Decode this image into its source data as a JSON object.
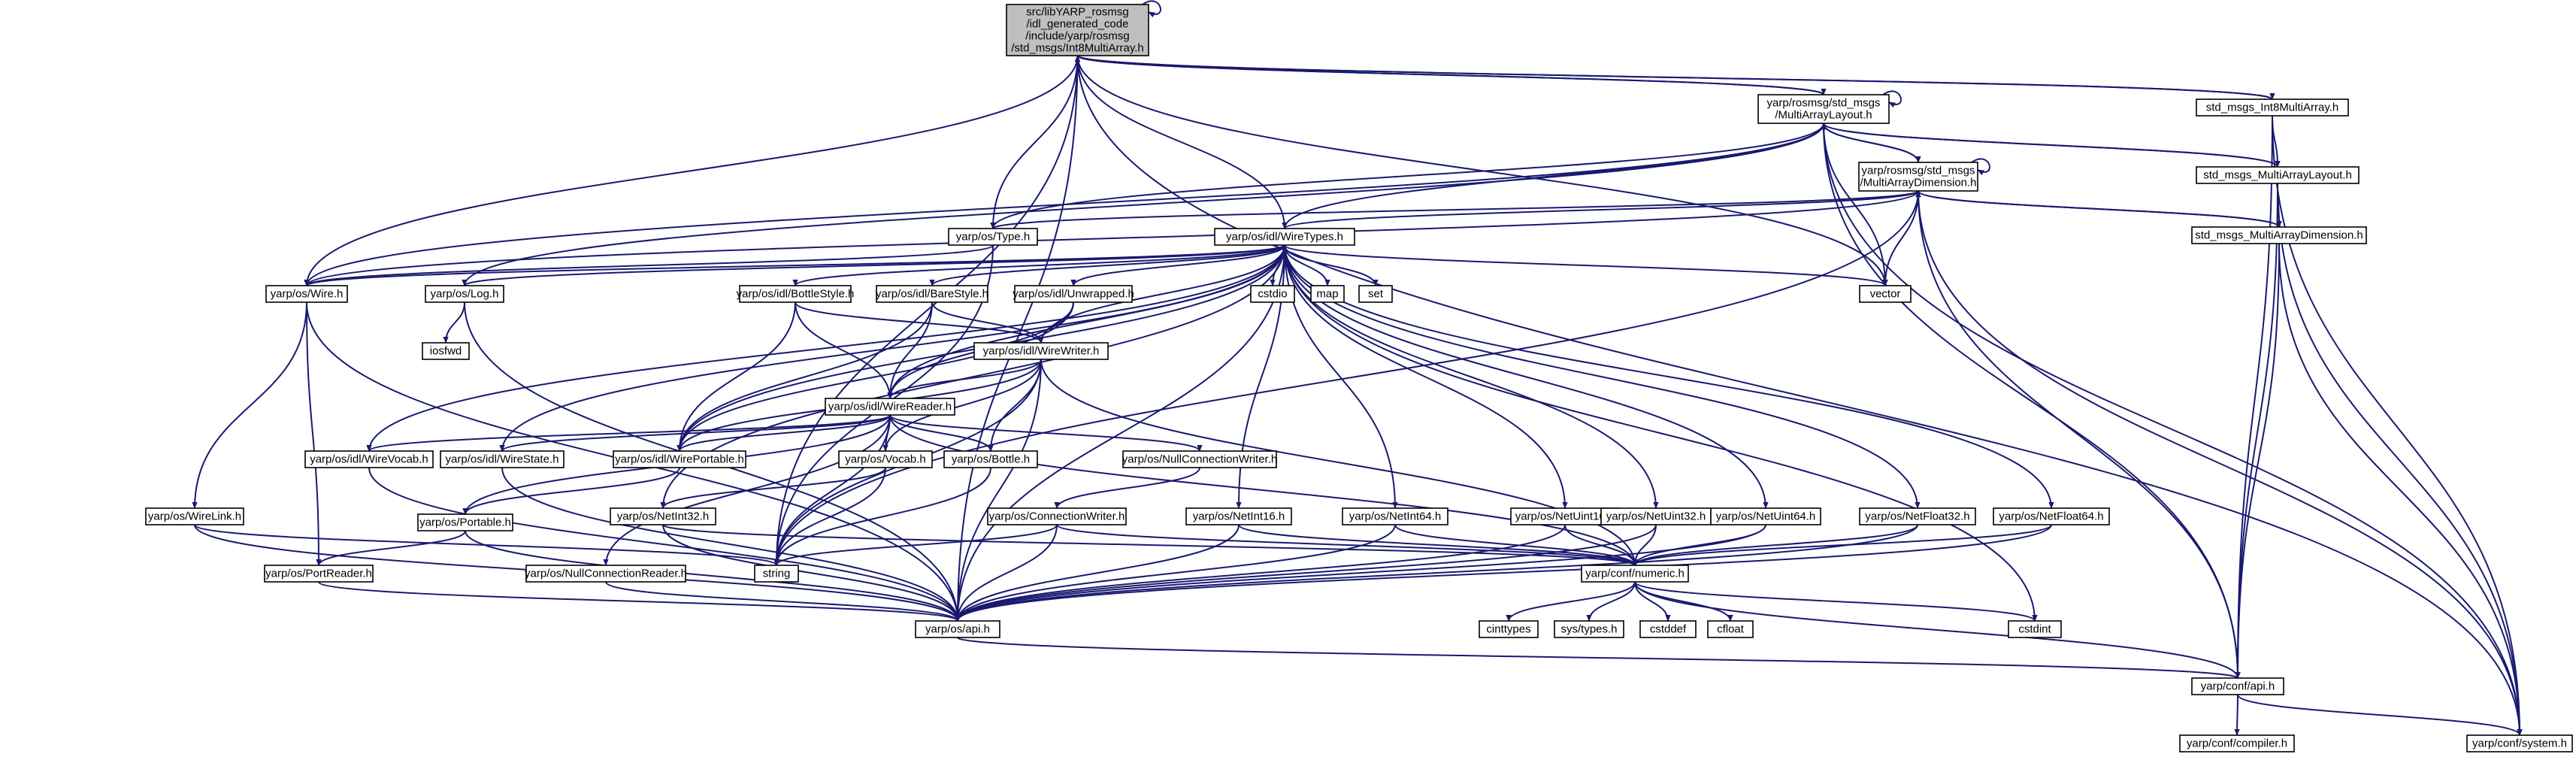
{
  "colors": {
    "edge": "#191970",
    "node_border": "#000000",
    "node_border_truncated": "#ff0000",
    "root_fill": "#bfbfbf",
    "node_fill": "#ffffff",
    "system_header_border": "#bfbfbf",
    "system_header_text": "#808080"
  },
  "nodes": [
    {
      "id": "root",
      "kind": "root",
      "lines": [
        "src/libYARP_rosmsg",
        "/idl_generated_code",
        "/include/yarp/rosmsg",
        "/std_msgs/Int8MultiArray.h"
      ]
    },
    {
      "id": "mal",
      "kind": "normal",
      "lines": [
        "yarp/rosmsg/std_msgs",
        "/MultiArrayLayout.h"
      ]
    },
    {
      "id": "mad",
      "kind": "normal",
      "lines": [
        "yarp/rosmsg/std_msgs",
        "/MultiArrayDimension.h"
      ]
    },
    {
      "id": "i8ma",
      "kind": "normal",
      "lines": [
        "std_msgs_Int8MultiArray.h"
      ]
    },
    {
      "id": "smal",
      "kind": "normal",
      "lines": [
        "std_msgs_MultiArrayLayout.h"
      ]
    },
    {
      "id": "smad",
      "kind": "normal",
      "lines": [
        "std_msgs_MultiArrayDimension.h"
      ]
    },
    {
      "id": "type",
      "kind": "normal",
      "lines": [
        "yarp/os/Type.h"
      ]
    },
    {
      "id": "wiretypes",
      "kind": "normal",
      "lines": [
        "yarp/os/idl/WireTypes.h"
      ]
    },
    {
      "id": "wire",
      "kind": "normal",
      "lines": [
        "yarp/os/Wire.h"
      ]
    },
    {
      "id": "log",
      "kind": "normal",
      "lines": [
        "yarp/os/Log.h"
      ]
    },
    {
      "id": "bottlestyle",
      "kind": "normal",
      "lines": [
        "yarp/os/idl/BottleStyle.h"
      ]
    },
    {
      "id": "barestyle",
      "kind": "normal",
      "lines": [
        "yarp/os/idl/BareStyle.h"
      ]
    },
    {
      "id": "unwrapped",
      "kind": "normal",
      "lines": [
        "yarp/os/idl/Unwrapped.h"
      ]
    },
    {
      "id": "cstdio",
      "kind": "system",
      "lines": [
        "cstdio"
      ]
    },
    {
      "id": "map",
      "kind": "system",
      "lines": [
        "map"
      ]
    },
    {
      "id": "set",
      "kind": "system",
      "lines": [
        "set"
      ]
    },
    {
      "id": "vector",
      "kind": "system",
      "lines": [
        "vector"
      ]
    },
    {
      "id": "iosfwd",
      "kind": "system",
      "lines": [
        "iosfwd"
      ]
    },
    {
      "id": "wirewriter",
      "kind": "normal",
      "lines": [
        "yarp/os/idl/WireWriter.h"
      ]
    },
    {
      "id": "wirereader",
      "kind": "normal",
      "lines": [
        "yarp/os/idl/WireReader.h"
      ]
    },
    {
      "id": "wirevocab",
      "kind": "normal",
      "lines": [
        "yarp/os/idl/WireVocab.h"
      ]
    },
    {
      "id": "wirestate",
      "kind": "normal",
      "lines": [
        "yarp/os/idl/WireState.h"
      ]
    },
    {
      "id": "wireportable",
      "kind": "normal",
      "lines": [
        "yarp/os/idl/WirePortable.h"
      ]
    },
    {
      "id": "vocab",
      "kind": "normal",
      "lines": [
        "yarp/os/Vocab.h"
      ]
    },
    {
      "id": "bottle",
      "kind": "truncated",
      "lines": [
        "yarp/os/Bottle.h"
      ]
    },
    {
      "id": "nullconnwriter",
      "kind": "normal",
      "lines": [
        "yarp/os/NullConnectionWriter.h"
      ]
    },
    {
      "id": "wirelink",
      "kind": "normal",
      "lines": [
        "yarp/os/WireLink.h"
      ]
    },
    {
      "id": "portable",
      "kind": "truncated",
      "lines": [
        "yarp/os/Portable.h"
      ]
    },
    {
      "id": "netint32",
      "kind": "normal",
      "lines": [
        "yarp/os/NetInt32.h"
      ]
    },
    {
      "id": "connwriter",
      "kind": "normal",
      "lines": [
        "yarp/os/ConnectionWriter.h"
      ]
    },
    {
      "id": "netint16",
      "kind": "normal",
      "lines": [
        "yarp/os/NetInt16.h"
      ]
    },
    {
      "id": "netint64",
      "kind": "normal",
      "lines": [
        "yarp/os/NetInt64.h"
      ]
    },
    {
      "id": "netuint16",
      "kind": "normal",
      "lines": [
        "yarp/os/NetUint16.h"
      ]
    },
    {
      "id": "netuint32",
      "kind": "normal",
      "lines": [
        "yarp/os/NetUint32.h"
      ]
    },
    {
      "id": "netuint64",
      "kind": "normal",
      "lines": [
        "yarp/os/NetUint64.h"
      ]
    },
    {
      "id": "netfloat32",
      "kind": "normal",
      "lines": [
        "yarp/os/NetFloat32.h"
      ]
    },
    {
      "id": "netfloat64",
      "kind": "normal",
      "lines": [
        "yarp/os/NetFloat64.h"
      ]
    },
    {
      "id": "portreader",
      "kind": "normal",
      "lines": [
        "yarp/os/PortReader.h"
      ]
    },
    {
      "id": "nullconnreader",
      "kind": "truncated",
      "lines": [
        "yarp/os/NullConnectionReader.h"
      ]
    },
    {
      "id": "string",
      "kind": "system",
      "lines": [
        "string"
      ]
    },
    {
      "id": "numeric",
      "kind": "normal",
      "lines": [
        "yarp/conf/numeric.h"
      ]
    },
    {
      "id": "osapi",
      "kind": "normal",
      "lines": [
        "yarp/os/api.h"
      ]
    },
    {
      "id": "cinttypes",
      "kind": "system",
      "lines": [
        "cinttypes"
      ]
    },
    {
      "id": "systypes",
      "kind": "system",
      "lines": [
        "sys/types.h"
      ]
    },
    {
      "id": "cstddef",
      "kind": "system",
      "lines": [
        "cstddef"
      ]
    },
    {
      "id": "cfloat",
      "kind": "system",
      "lines": [
        "cfloat"
      ]
    },
    {
      "id": "cstdint",
      "kind": "system",
      "lines": [
        "cstdint"
      ]
    },
    {
      "id": "confapi",
      "kind": "normal",
      "lines": [
        "yarp/conf/api.h"
      ]
    },
    {
      "id": "compiler",
      "kind": "normal",
      "lines": [
        "yarp/conf/compiler.h"
      ]
    },
    {
      "id": "system",
      "kind": "normal",
      "lines": [
        "yarp/conf/system.h"
      ]
    }
  ],
  "edges": [
    [
      "root",
      "root"
    ],
    [
      "root",
      "mal"
    ],
    [
      "root",
      "i8ma"
    ],
    [
      "root",
      "type"
    ],
    [
      "root",
      "wiretypes"
    ],
    [
      "root",
      "wire"
    ],
    [
      "root",
      "vector"
    ],
    [
      "root",
      "string"
    ],
    [
      "root",
      "osapi"
    ],
    [
      "root",
      "system"
    ],
    [
      "mal",
      "mal"
    ],
    [
      "mal",
      "root"
    ],
    [
      "mal",
      "mad"
    ],
    [
      "mal",
      "smal"
    ],
    [
      "mal",
      "type"
    ],
    [
      "mal",
      "wiretypes"
    ],
    [
      "mal",
      "wire"
    ],
    [
      "mal",
      "log"
    ],
    [
      "mal",
      "vector"
    ],
    [
      "mal",
      "confapi"
    ],
    [
      "mal",
      "system"
    ],
    [
      "mad",
      "mad"
    ],
    [
      "mad",
      "mal"
    ],
    [
      "mad",
      "smad"
    ],
    [
      "mad",
      "type"
    ],
    [
      "mad",
      "wiretypes"
    ],
    [
      "mad",
      "wire"
    ],
    [
      "mad",
      "vector"
    ],
    [
      "mad",
      "string"
    ],
    [
      "mad",
      "confapi"
    ],
    [
      "mad",
      "system"
    ],
    [
      "i8ma",
      "root"
    ],
    [
      "i8ma",
      "smal"
    ],
    [
      "i8ma",
      "confapi"
    ],
    [
      "i8ma",
      "system"
    ],
    [
      "smal",
      "mal"
    ],
    [
      "smal",
      "smad"
    ],
    [
      "smal",
      "confapi"
    ],
    [
      "smal",
      "system"
    ],
    [
      "smad",
      "mad"
    ],
    [
      "smad",
      "confapi"
    ],
    [
      "smad",
      "system"
    ],
    [
      "type",
      "wire"
    ],
    [
      "type",
      "string"
    ],
    [
      "wiretypes",
      "wire"
    ],
    [
      "wiretypes",
      "log"
    ],
    [
      "wiretypes",
      "bottlestyle"
    ],
    [
      "wiretypes",
      "barestyle"
    ],
    [
      "wiretypes",
      "unwrapped"
    ],
    [
      "wiretypes",
      "cstdio"
    ],
    [
      "wiretypes",
      "map"
    ],
    [
      "wiretypes",
      "set"
    ],
    [
      "wiretypes",
      "vector"
    ],
    [
      "wiretypes",
      "wirewriter"
    ],
    [
      "wiretypes",
      "wirereader"
    ],
    [
      "wiretypes",
      "wirevocab"
    ],
    [
      "wiretypes",
      "wirestate"
    ],
    [
      "wiretypes",
      "wireportable"
    ],
    [
      "wiretypes",
      "netint16"
    ],
    [
      "wiretypes",
      "netint32"
    ],
    [
      "wiretypes",
      "netint64"
    ],
    [
      "wiretypes",
      "netuint16"
    ],
    [
      "wiretypes",
      "netuint32"
    ],
    [
      "wiretypes",
      "netuint64"
    ],
    [
      "wiretypes",
      "netfloat32"
    ],
    [
      "wiretypes",
      "netfloat64"
    ],
    [
      "wiretypes",
      "osapi"
    ],
    [
      "wiretypes",
      "cstdint"
    ],
    [
      "wire",
      "wirelink"
    ],
    [
      "wire",
      "portreader"
    ],
    [
      "wire",
      "osapi"
    ],
    [
      "log",
      "iosfwd"
    ],
    [
      "log",
      "osapi"
    ],
    [
      "bottlestyle",
      "wirewriter"
    ],
    [
      "bottlestyle",
      "wirereader"
    ],
    [
      "bottlestyle",
      "wireportable"
    ],
    [
      "barestyle",
      "wirewriter"
    ],
    [
      "barestyle",
      "wirereader"
    ],
    [
      "barestyle",
      "wireportable"
    ],
    [
      "unwrapped",
      "wirewriter"
    ],
    [
      "unwrapped",
      "wirereader"
    ],
    [
      "unwrapped",
      "wireportable"
    ],
    [
      "wirewriter",
      "wirereader"
    ],
    [
      "wirewriter",
      "wireportable"
    ],
    [
      "wirewriter",
      "vocab"
    ],
    [
      "wirewriter",
      "bottle"
    ],
    [
      "wirewriter",
      "string"
    ],
    [
      "wirewriter",
      "numeric"
    ],
    [
      "wirewriter",
      "osapi"
    ],
    [
      "wirereader",
      "wirevocab"
    ],
    [
      "wirereader",
      "wirestate"
    ],
    [
      "wirereader",
      "wireportable"
    ],
    [
      "wirereader",
      "vocab"
    ],
    [
      "wirereader",
      "bottle"
    ],
    [
      "wirereader",
      "nullconnwriter"
    ],
    [
      "wirereader",
      "portable"
    ],
    [
      "wirereader",
      "nullconnreader"
    ],
    [
      "wirereader",
      "string"
    ],
    [
      "wirereader",
      "numeric"
    ],
    [
      "wirevocab",
      "osapi"
    ],
    [
      "wirestate",
      "osapi"
    ],
    [
      "wireportable",
      "portable"
    ],
    [
      "vocab",
      "string"
    ],
    [
      "vocab",
      "netint32"
    ],
    [
      "bottle",
      "string"
    ],
    [
      "nullconnwriter",
      "connwriter"
    ],
    [
      "wirelink",
      "osapi"
    ],
    [
      "wirelink",
      "string"
    ],
    [
      "portable",
      "portreader"
    ],
    [
      "portable",
      "osapi"
    ],
    [
      "netint32",
      "numeric"
    ],
    [
      "netint32",
      "osapi"
    ],
    [
      "connwriter",
      "string"
    ],
    [
      "connwriter",
      "osapi"
    ],
    [
      "connwriter",
      "numeric"
    ],
    [
      "netint16",
      "numeric"
    ],
    [
      "netint16",
      "osapi"
    ],
    [
      "netint64",
      "numeric"
    ],
    [
      "netint64",
      "osapi"
    ],
    [
      "netuint16",
      "numeric"
    ],
    [
      "netuint16",
      "osapi"
    ],
    [
      "netuint32",
      "numeric"
    ],
    [
      "netuint32",
      "osapi"
    ],
    [
      "netuint64",
      "numeric"
    ],
    [
      "netuint64",
      "osapi"
    ],
    [
      "netfloat32",
      "numeric"
    ],
    [
      "netfloat32",
      "osapi"
    ],
    [
      "netfloat64",
      "numeric"
    ],
    [
      "netfloat64",
      "osapi"
    ],
    [
      "portreader",
      "osapi"
    ],
    [
      "nullconnreader",
      "osapi"
    ],
    [
      "numeric",
      "cinttypes"
    ],
    [
      "numeric",
      "systypes"
    ],
    [
      "numeric",
      "cstddef"
    ],
    [
      "numeric",
      "cfloat"
    ],
    [
      "numeric",
      "cstdint"
    ],
    [
      "numeric",
      "confapi"
    ],
    [
      "osapi",
      "confapi"
    ],
    [
      "confapi",
      "compiler"
    ],
    [
      "confapi",
      "system"
    ]
  ]
}
